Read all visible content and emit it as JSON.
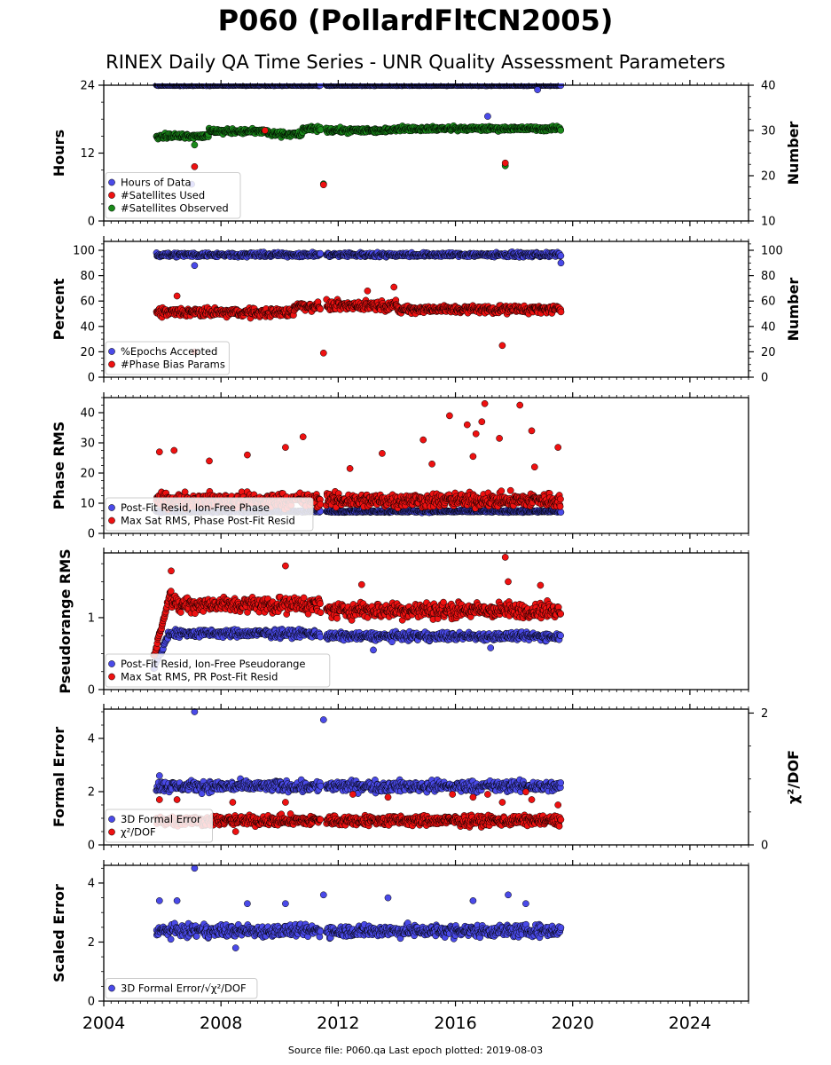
{
  "page": {
    "title": "P060 (PollardFltCN2005)",
    "subtitle": "RINEX Daily QA Time Series - UNR Quality Assessment Parameters",
    "footer": "Source file: P060.qa Last epoch plotted: 2019-08-03"
  },
  "colors": {
    "blue": "#4a4ae8",
    "red": "#ee1111",
    "green": "#1a8a1a",
    "edge": "#000000"
  },
  "chart_data": [
    {
      "type": "scatter",
      "panel": "hours",
      "ylabel": "Hours",
      "ylim": [
        0,
        24
      ],
      "yticks": [
        0,
        12,
        24
      ],
      "y2label": "Number",
      "y2lim": [
        10,
        40
      ],
      "y2ticks": [
        10,
        20,
        30,
        40
      ],
      "xlim": [
        2004.0,
        2026.0
      ],
      "xticks": [
        2004,
        2008,
        2012,
        2016,
        2020,
        2024
      ],
      "legend": {
        "position": "lower-left",
        "entries": [
          {
            "label": "Hours of Data",
            "color": "blue"
          },
          {
            "label": "#Satellites Used",
            "color": "red"
          },
          {
            "label": "#Satellites Observed",
            "color": "green"
          }
        ]
      },
      "series": [
        {
          "name": "Hours of Data",
          "color": "blue",
          "axis": "left",
          "segments": [
            {
              "x": [
                2005.8,
                2011.4
              ],
              "y": 24.0,
              "spread": 0.1
            },
            {
              "x": [
                2011.6,
                2019.6
              ],
              "y": 24.0,
              "spread": 0.1
            }
          ],
          "outliers": [
            {
              "x": 2007.0,
              "y": 6.5
            },
            {
              "x": 2017.1,
              "y": 18.5
            },
            {
              "x": 2018.8,
              "y": 23.2
            }
          ]
        },
        {
          "name": "#Satellites Observed",
          "color": "green",
          "axis": "right",
          "segments": [
            {
              "x": [
                2005.8,
                2007.6
              ],
              "y": 28.8,
              "spread": 0.8
            },
            {
              "x": [
                2007.6,
                2009.6
              ],
              "y": 29.8,
              "spread": 0.8
            },
            {
              "x": [
                2009.6,
                2010.8
              ],
              "y": 29.2,
              "spread": 0.8
            },
            {
              "x": [
                2010.8,
                2011.4
              ],
              "y": 30.3,
              "spread": 0.8
            },
            {
              "x": [
                2011.6,
                2013.8
              ],
              "y": 30.0,
              "spread": 0.8
            },
            {
              "x": [
                2013.8,
                2019.6
              ],
              "y": 30.4,
              "spread": 0.7
            }
          ],
          "outliers": [
            {
              "x": 2011.5,
              "y": 18.2
            },
            {
              "x": 2017.7,
              "y": 22.2
            },
            {
              "x": 2007.1,
              "y": 26.8
            }
          ]
        },
        {
          "name": "#Satellites Used",
          "color": "red",
          "axis": "right",
          "segments": [],
          "outliers": [
            {
              "x": 2007.1,
              "y": 22.0
            },
            {
              "x": 2011.5,
              "y": 18.0
            },
            {
              "x": 2017.7,
              "y": 22.8
            },
            {
              "x": 2009.5,
              "y": 30.0
            }
          ]
        }
      ]
    },
    {
      "type": "scatter",
      "panel": "percent",
      "ylabel": "Percent",
      "ylim": [
        0,
        107
      ],
      "yticks": [
        0,
        20,
        40,
        60,
        80,
        100
      ],
      "y2label": "Number",
      "y2ticks": [
        0,
        20,
        40,
        60,
        80,
        100
      ],
      "xlim": [
        2004.0,
        2026.0
      ],
      "legend": {
        "position": "lower-left",
        "entries": [
          {
            "label": "%Epochs Accepted",
            "color": "blue"
          },
          {
            "label": "#Phase Bias Params",
            "color": "red"
          }
        ]
      },
      "series": [
        {
          "name": "%Epochs Accepted",
          "color": "blue",
          "segments": [
            {
              "x": [
                2005.8,
                2011.4
              ],
              "y": 96.5,
              "spread": 2.5
            },
            {
              "x": [
                2011.6,
                2019.6
              ],
              "y": 96.5,
              "spread": 2.5
            }
          ],
          "outliers": [
            {
              "x": 2007.1,
              "y": 88.0
            },
            {
              "x": 2019.6,
              "y": 90.0
            }
          ]
        },
        {
          "name": "#Phase Bias Params",
          "color": "red",
          "segments": [
            {
              "x": [
                2005.8,
                2010.5
              ],
              "y": 51.0,
              "spread": 5.0
            },
            {
              "x": [
                2010.5,
                2011.4
              ],
              "y": 56.0,
              "spread": 5.0
            },
            {
              "x": [
                2011.6,
                2014.0
              ],
              "y": 56.5,
              "spread": 5.5
            },
            {
              "x": [
                2014.0,
                2019.6
              ],
              "y": 53.5,
              "spread": 4.5
            }
          ],
          "outliers": [
            {
              "x": 2011.5,
              "y": 19.0
            },
            {
              "x": 2007.1,
              "y": 20.0
            },
            {
              "x": 2017.6,
              "y": 25.0
            },
            {
              "x": 2013.9,
              "y": 71.0
            },
            {
              "x": 2006.5,
              "y": 64.0
            },
            {
              "x": 2013.0,
              "y": 68.0
            }
          ]
        }
      ]
    },
    {
      "type": "scatter",
      "panel": "phase",
      "ylabel": "Phase RMS",
      "ylim": [
        0,
        45
      ],
      "yticks": [
        0,
        10,
        20,
        30,
        40
      ],
      "xlim": [
        2004.0,
        2026.0
      ],
      "legend": {
        "position": "lower-left",
        "entries": [
          {
            "label": "Post-Fit Resid, Ion-Free Phase",
            "color": "blue"
          },
          {
            "label": "Max Sat RMS, Phase Post-Fit Resid",
            "color": "red"
          }
        ]
      },
      "series": [
        {
          "name": "Post-Fit Resid, Ion-Free Phase",
          "color": "blue",
          "segments": [
            {
              "x": [
                2005.8,
                2011.4
              ],
              "y": 7.3,
              "spread": 0.5
            },
            {
              "x": [
                2011.6,
                2019.6
              ],
              "y": 7.3,
              "spread": 0.5
            }
          ],
          "outliers": []
        },
        {
          "name": "Max Sat RMS, Phase Post-Fit Resid",
          "color": "red",
          "segments": [
            {
              "x": [
                2005.8,
                2011.4
              ],
              "y": 11.0,
              "spread": 3.5
            },
            {
              "x": [
                2011.6,
                2019.6
              ],
              "y": 11.0,
              "spread": 3.5
            }
          ],
          "outliers": [
            {
              "x": 2017.0,
              "y": 43.0
            },
            {
              "x": 2018.2,
              "y": 42.5
            },
            {
              "x": 2015.8,
              "y": 39.0
            },
            {
              "x": 2016.9,
              "y": 37.0
            },
            {
              "x": 2016.4,
              "y": 36.0
            },
            {
              "x": 2018.6,
              "y": 34.0
            },
            {
              "x": 2010.8,
              "y": 32.0
            },
            {
              "x": 2014.9,
              "y": 31.0
            },
            {
              "x": 2017.5,
              "y": 31.5
            },
            {
              "x": 2016.7,
              "y": 33.0
            },
            {
              "x": 2019.5,
              "y": 28.5
            },
            {
              "x": 2010.2,
              "y": 28.5
            },
            {
              "x": 2006.4,
              "y": 27.5
            },
            {
              "x": 2005.9,
              "y": 27.0
            },
            {
              "x": 2008.9,
              "y": 26.0
            },
            {
              "x": 2013.5,
              "y": 26.5
            },
            {
              "x": 2016.6,
              "y": 25.5
            },
            {
              "x": 2015.2,
              "y": 23.0
            },
            {
              "x": 2007.6,
              "y": 24.0
            },
            {
              "x": 2018.7,
              "y": 22.0
            },
            {
              "x": 2012.4,
              "y": 21.5
            }
          ]
        }
      ]
    },
    {
      "type": "scatter",
      "panel": "pseudorange",
      "ylabel": "Pseudorange RMS",
      "ylim": [
        0,
        1.9
      ],
      "yticks": [
        0,
        1
      ],
      "xlim": [
        2004.0,
        2026.0
      ],
      "legend": {
        "position": "lower-left",
        "entries": [
          {
            "label": "Post-Fit Resid, Ion-Free Pseudorange",
            "color": "blue"
          },
          {
            "label": "Max Sat RMS, PR Post-Fit Resid",
            "color": "red"
          }
        ]
      },
      "series": [
        {
          "name": "Post-Fit Resid, Ion-Free Pseudorange",
          "color": "blue",
          "ramp": {
            "x": [
              2005.7,
              2006.2
            ],
            "y": [
              0.3,
              0.75
            ]
          },
          "segments": [
            {
              "x": [
                2006.2,
                2011.4
              ],
              "y": 0.78,
              "spread": 0.08
            },
            {
              "x": [
                2011.6,
                2019.6
              ],
              "y": 0.74,
              "spread": 0.08
            }
          ],
          "outliers": [
            {
              "x": 2013.2,
              "y": 0.55
            },
            {
              "x": 2017.2,
              "y": 0.58
            }
          ]
        },
        {
          "name": "Max Sat RMS, PR Post-Fit Resid",
          "color": "red",
          "ramp": {
            "x": [
              2005.7,
              2006.3
            ],
            "y": [
              0.45,
              1.4
            ]
          },
          "segments": [
            {
              "x": [
                2006.3,
                2011.4
              ],
              "y": 1.18,
              "spread": 0.16
            },
            {
              "x": [
                2011.6,
                2019.6
              ],
              "y": 1.1,
              "spread": 0.16
            }
          ],
          "outliers": [
            {
              "x": 2017.7,
              "y": 1.84
            },
            {
              "x": 2010.2,
              "y": 1.72
            },
            {
              "x": 2006.3,
              "y": 1.65
            },
            {
              "x": 2017.8,
              "y": 1.5
            },
            {
              "x": 2018.9,
              "y": 1.45
            },
            {
              "x": 2012.8,
              "y": 1.46
            }
          ]
        }
      ]
    },
    {
      "type": "scatter",
      "panel": "formal",
      "ylabel": "Formal Error",
      "ylim": [
        0,
        5.1
      ],
      "yticks": [
        0,
        2,
        4
      ],
      "y2label": "χ²/DOF",
      "y2lim": [
        0,
        2.06
      ],
      "y2ticks": [
        0,
        2
      ],
      "xlim": [
        2004.0,
        2026.0
      ],
      "legend": {
        "position": "lower-left",
        "entries": [
          {
            "label": "3D Formal Error",
            "color": "blue"
          },
          {
            "label": "χ²/DOF",
            "color": "red"
          }
        ]
      },
      "series": [
        {
          "name": "3D Formal Error",
          "color": "blue",
          "segments": [
            {
              "x": [
                2005.8,
                2011.4
              ],
              "y": 2.2,
              "spread": 0.3
            },
            {
              "x": [
                2011.6,
                2019.6
              ],
              "y": 2.2,
              "spread": 0.3
            }
          ],
          "outliers": [
            {
              "x": 2007.1,
              "y": 5.0
            },
            {
              "x": 2011.5,
              "y": 4.7
            },
            {
              "x": 2005.9,
              "y": 2.6
            }
          ]
        },
        {
          "name": "χ²/DOF",
          "color": "red",
          "segments": [
            {
              "x": [
                2005.8,
                2011.4
              ],
              "y": 0.91,
              "spread": 0.28
            },
            {
              "x": [
                2011.6,
                2019.6
              ],
              "y": 0.91,
              "spread": 0.28
            }
          ],
          "outliers": [
            {
              "x": 2018.4,
              "y": 1.99
            },
            {
              "x": 2012.5,
              "y": 1.9
            },
            {
              "x": 2015.9,
              "y": 1.9
            },
            {
              "x": 2017.1,
              "y": 1.9
            },
            {
              "x": 2013.7,
              "y": 1.79
            },
            {
              "x": 2016.6,
              "y": 1.79
            },
            {
              "x": 2018.6,
              "y": 1.7
            },
            {
              "x": 2005.9,
              "y": 1.7
            },
            {
              "x": 2006.5,
              "y": 1.7
            },
            {
              "x": 2010.2,
              "y": 1.6
            },
            {
              "x": 2017.6,
              "y": 1.6
            },
            {
              "x": 2008.4,
              "y": 1.6
            },
            {
              "x": 2019.5,
              "y": 1.5
            },
            {
              "x": 2008.5,
              "y": 0.5
            }
          ]
        }
      ]
    },
    {
      "type": "scatter",
      "panel": "scaled",
      "ylabel": "Scaled Error",
      "ylim": [
        0,
        4.6
      ],
      "yticks": [
        0,
        2,
        4
      ],
      "xlim": [
        2004.0,
        2026.0
      ],
      "xticks": [
        2004,
        2008,
        2012,
        2016,
        2020,
        2024
      ],
      "legend": {
        "position": "lower-left",
        "entries": [
          {
            "label": "3D Formal Error/√χ²/DOF",
            "color": "blue"
          }
        ]
      },
      "series": [
        {
          "name": "3D Formal Error/√χ²/DOF",
          "color": "blue",
          "segments": [
            {
              "x": [
                2005.8,
                2011.4
              ],
              "y": 2.38,
              "spread": 0.3
            },
            {
              "x": [
                2011.6,
                2019.6
              ],
              "y": 2.38,
              "spread": 0.3
            }
          ],
          "outliers": [
            {
              "x": 2007.1,
              "y": 4.5
            },
            {
              "x": 2011.5,
              "y": 3.6
            },
            {
              "x": 2017.8,
              "y": 3.6
            },
            {
              "x": 2013.7,
              "y": 3.5
            },
            {
              "x": 2016.6,
              "y": 3.4
            },
            {
              "x": 2018.4,
              "y": 3.3
            },
            {
              "x": 2005.9,
              "y": 3.4
            },
            {
              "x": 2006.5,
              "y": 3.4
            },
            {
              "x": 2008.9,
              "y": 3.3
            },
            {
              "x": 2010.2,
              "y": 3.3
            },
            {
              "x": 2008.5,
              "y": 1.8
            }
          ]
        }
      ]
    }
  ]
}
